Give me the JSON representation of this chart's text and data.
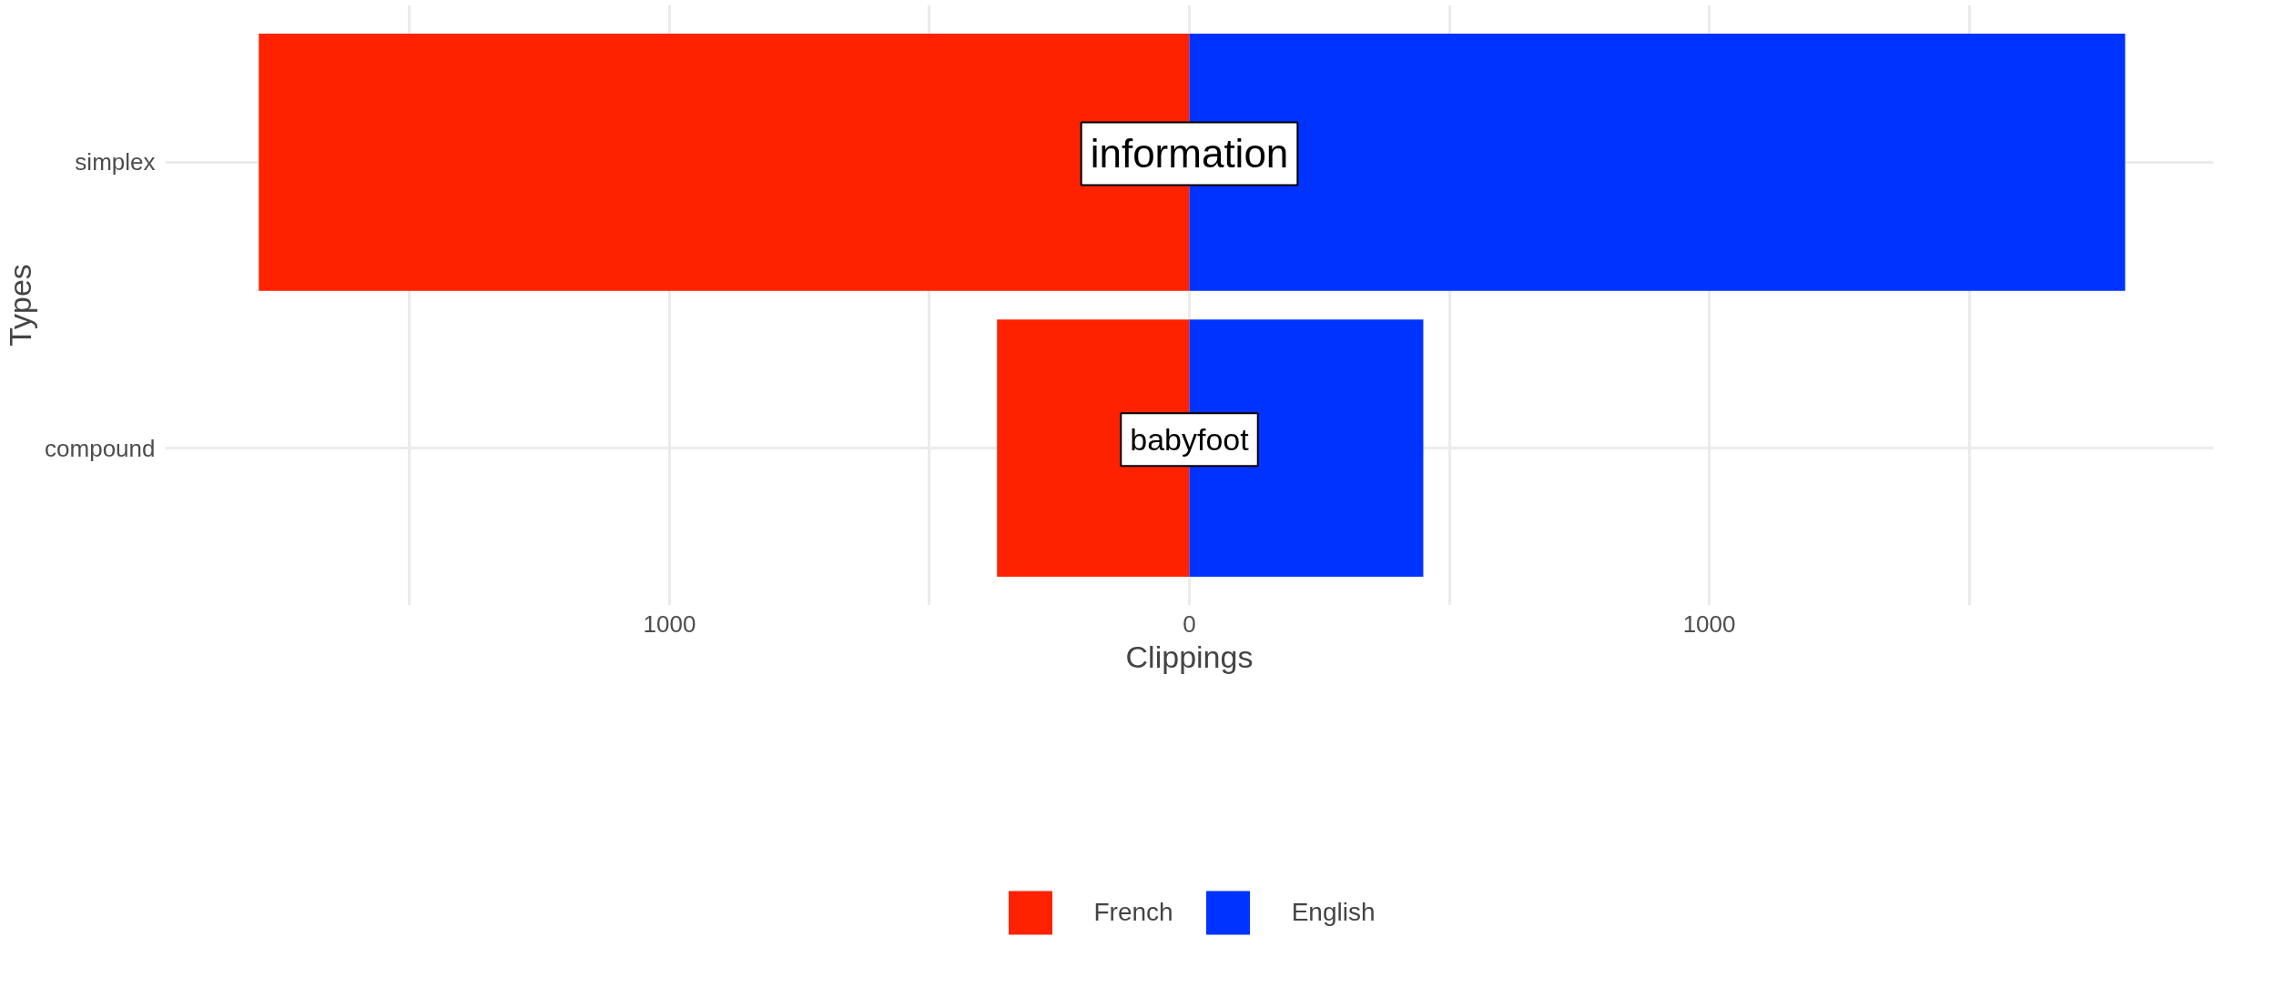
{
  "chart_data": {
    "type": "bar",
    "orientation": "horizontal",
    "stacked": true,
    "xlabel": "Clippings",
    "ylabel": "Types",
    "categories": [
      "simplex",
      "compound"
    ],
    "series": [
      {
        "name": "French",
        "color": "#ff2200",
        "values": [
          -1790,
          -370
        ]
      },
      {
        "name": "English",
        "color": "#0033ff",
        "values": [
          1800,
          450
        ]
      }
    ],
    "xlim": [
      -1970,
      1970
    ],
    "xticks": [
      {
        "value": -1500,
        "label": null
      },
      {
        "value": -1000,
        "label": "1000"
      },
      {
        "value": -500,
        "label": null
      },
      0,
      {
        "value": 500,
        "label": null
      },
      1000,
      {
        "value": 1500,
        "label": null
      }
    ],
    "grid": true,
    "legend": "bottom",
    "annotations": [
      {
        "text": "information",
        "x": 0,
        "y": "simplex"
      },
      {
        "text": "babyfoot",
        "x": 0,
        "y": "compound"
      }
    ]
  }
}
